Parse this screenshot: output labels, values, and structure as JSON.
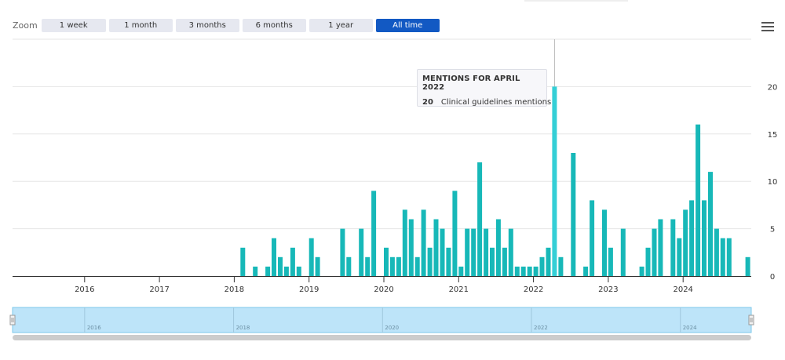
{
  "zoom": {
    "label": "Zoom",
    "buttons": [
      "1 week",
      "1 month",
      "3 months",
      "6 months",
      "1 year",
      "All time"
    ],
    "active": "All time"
  },
  "tooltip": {
    "title": "MENTIONS FOR APRIL 2022",
    "value": "20",
    "series_label": "Clinical guidelines mentions"
  },
  "colors": {
    "bar": "#17b8b8",
    "bar_highlight": "#34cfd6",
    "active_button": "#1259c3",
    "navigator_fill": "#bde4f9",
    "navigator_line": "#7ec8ea",
    "scrollbar": "#cccccc"
  },
  "chart_data": {
    "type": "bar",
    "series": [
      {
        "name": "Clinical guidelines mentions",
        "points": [
          [
            "2018-02",
            3
          ],
          [
            "2018-04",
            1
          ],
          [
            "2018-06",
            1
          ],
          [
            "2018-07",
            4
          ],
          [
            "2018-08",
            2
          ],
          [
            "2018-09",
            1
          ],
          [
            "2018-10",
            3
          ],
          [
            "2018-11",
            1
          ],
          [
            "2019-01",
            4
          ],
          [
            "2019-02",
            2
          ],
          [
            "2019-06",
            5
          ],
          [
            "2019-07",
            2
          ],
          [
            "2019-09",
            5
          ],
          [
            "2019-10",
            2
          ],
          [
            "2019-11",
            9
          ],
          [
            "2020-01",
            3
          ],
          [
            "2020-02",
            2
          ],
          [
            "2020-03",
            2
          ],
          [
            "2020-04",
            7
          ],
          [
            "2020-05",
            6
          ],
          [
            "2020-06",
            2
          ],
          [
            "2020-07",
            7
          ],
          [
            "2020-08",
            3
          ],
          [
            "2020-09",
            6
          ],
          [
            "2020-10",
            5
          ],
          [
            "2020-11",
            3
          ],
          [
            "2020-12",
            9
          ],
          [
            "2021-01",
            1
          ],
          [
            "2021-02",
            5
          ],
          [
            "2021-03",
            5
          ],
          [
            "2021-04",
            12
          ],
          [
            "2021-05",
            5
          ],
          [
            "2021-06",
            3
          ],
          [
            "2021-07",
            6
          ],
          [
            "2021-08",
            3
          ],
          [
            "2021-09",
            5
          ],
          [
            "2021-10",
            1
          ],
          [
            "2021-11",
            1
          ],
          [
            "2021-12",
            1
          ],
          [
            "2022-01",
            1
          ],
          [
            "2022-02",
            2
          ],
          [
            "2022-03",
            3
          ],
          [
            "2022-04",
            20
          ],
          [
            "2022-05",
            2
          ],
          [
            "2022-07",
            13
          ],
          [
            "2022-09",
            1
          ],
          [
            "2022-10",
            8
          ],
          [
            "2022-12",
            7
          ],
          [
            "2023-01",
            3
          ],
          [
            "2023-03",
            5
          ],
          [
            "2023-06",
            1
          ],
          [
            "2023-07",
            3
          ],
          [
            "2023-08",
            5
          ],
          [
            "2023-09",
            6
          ],
          [
            "2023-11",
            6
          ],
          [
            "2023-12",
            4
          ],
          [
            "2024-01",
            7
          ],
          [
            "2024-02",
            8
          ],
          [
            "2024-03",
            16
          ],
          [
            "2024-04",
            8
          ],
          [
            "2024-05",
            11
          ],
          [
            "2024-06",
            5
          ],
          [
            "2024-07",
            4
          ],
          [
            "2024-08",
            4
          ],
          [
            "2024-11",
            2
          ]
        ]
      }
    ],
    "highlighted": "2022-04",
    "x_ticks": [
      "2016",
      "2017",
      "2018",
      "2019",
      "2020",
      "2021",
      "2022",
      "2023",
      "2024"
    ],
    "y_ticks": [
      0,
      5,
      10,
      15,
      20
    ],
    "ylim": [
      0,
      25
    ],
    "xlim": [
      "2015-01",
      "2024-12"
    ],
    "navigator_ticks": [
      "2016",
      "2018",
      "2020",
      "2022",
      "2024"
    ],
    "grid": true,
    "y_axis_side": "right"
  }
}
